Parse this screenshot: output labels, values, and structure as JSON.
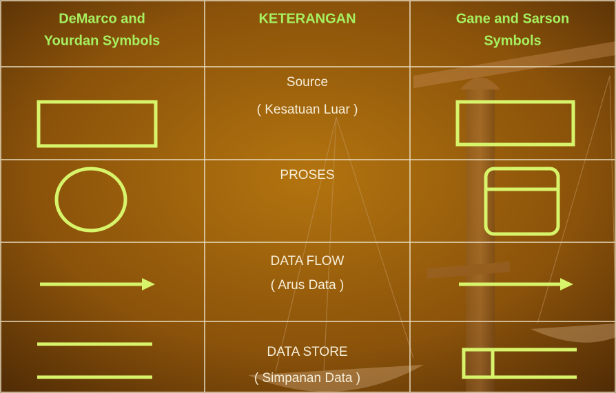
{
  "table": {
    "header": [
      [
        "DeMarco and",
        "Yourdan Symbols"
      ],
      [
        "KETERANGAN"
      ],
      [
        "Gane and Sarson",
        "Symbols"
      ]
    ],
    "rows": [
      [
        "Source",
        "( Kesatuan Luar )"
      ],
      [
        "PROSES"
      ],
      [
        "DATA FLOW",
        "( Arus Data )"
      ],
      [
        "DATA STORE",
        "( Simpanan Data )"
      ]
    ]
  }
}
